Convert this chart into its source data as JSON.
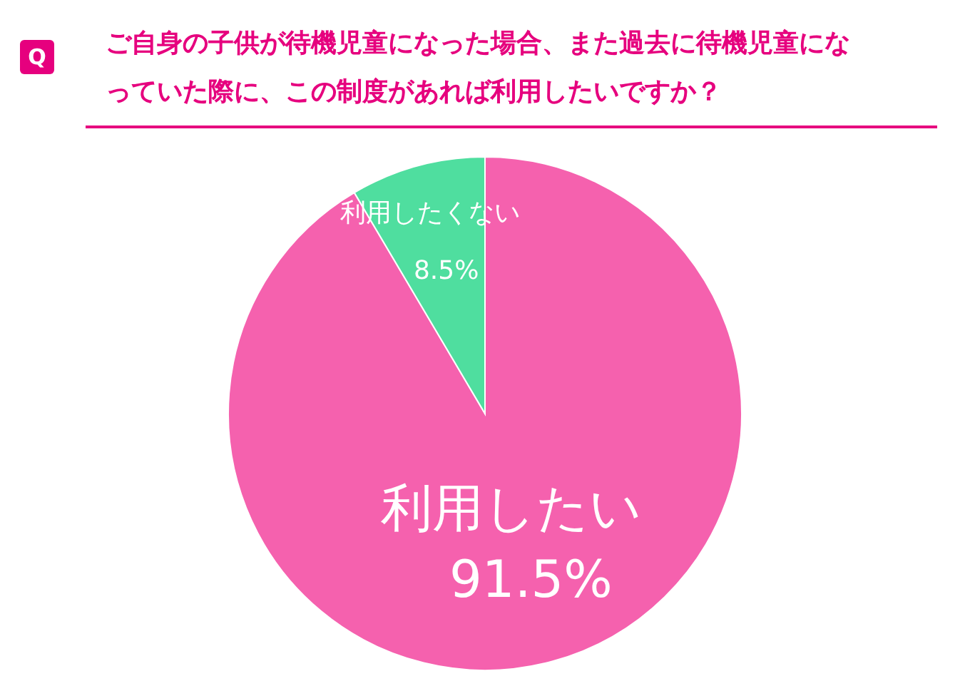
{
  "chart_data": {
    "type": "pie",
    "title": "ご自身の子供が待機児童になった場合、また過去に待機児童になっていた際に、この制度があれば利用したいですか？",
    "annotations": [
      "Q"
    ],
    "categories": [
      "利用したい",
      "利用したくない"
    ],
    "values": [
      91.5,
      8.5
    ],
    "colors": [
      "#f561ae",
      "#4fde9f"
    ],
    "value_labels": [
      "91.5%",
      "8.5%"
    ]
  }
}
